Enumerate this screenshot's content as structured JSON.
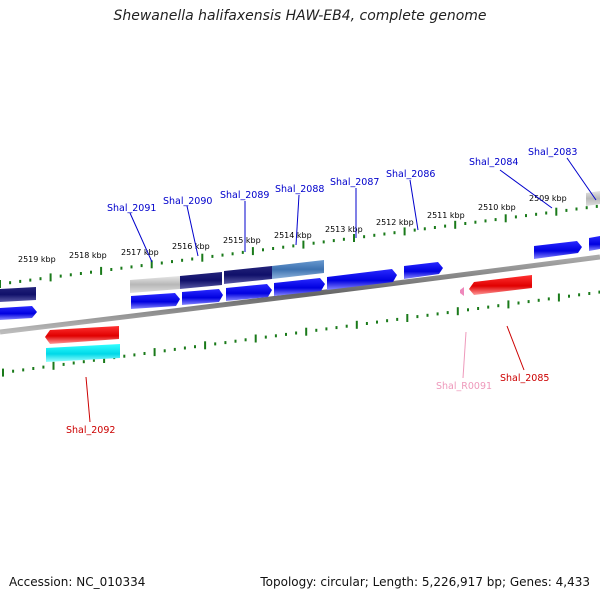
{
  "title": "Shewanella halifaxensis HAW-EB4, complete genome",
  "footer": {
    "accession": "Accession: NC_010334",
    "summary": "Topology: circular; Length: 5,226,917 bp; Genes: 4,433"
  },
  "ruler_labels": [
    "2519 kbp",
    "2518 kbp",
    "2517 kbp",
    "2516 kbp",
    "2515 kbp",
    "2514 kbp",
    "2513 kbp",
    "2512 kbp",
    "2511 kbp",
    "2510 kbp",
    "2509 kbp"
  ],
  "gene_labels": [
    {
      "text": "Shal_2091",
      "color": "#0000cc"
    },
    {
      "text": "Shal_2090",
      "color": "#0000cc"
    },
    {
      "text": "Shal_2089",
      "color": "#0000cc"
    },
    {
      "text": "Shal_2088",
      "color": "#0000cc"
    },
    {
      "text": "Shal_2087",
      "color": "#0000cc"
    },
    {
      "text": "Shal_2086",
      "color": "#0000cc"
    },
    {
      "text": "Shal_2084",
      "color": "#0000cc"
    },
    {
      "text": "Shal_2083",
      "color": "#0000cc"
    },
    {
      "text": "Shal_2092",
      "color": "#cc0000"
    },
    {
      "text": "Shal_R0091",
      "color": "#ee99bb"
    },
    {
      "text": "Shal_2085",
      "color": "#cc0000"
    }
  ],
  "colors": {
    "forward_gene": "#0000ee",
    "reverse_gene": "#ee0000",
    "rna": "#00e5ee",
    "backbone": "#777777",
    "ticks": "#1a7a1a"
  }
}
